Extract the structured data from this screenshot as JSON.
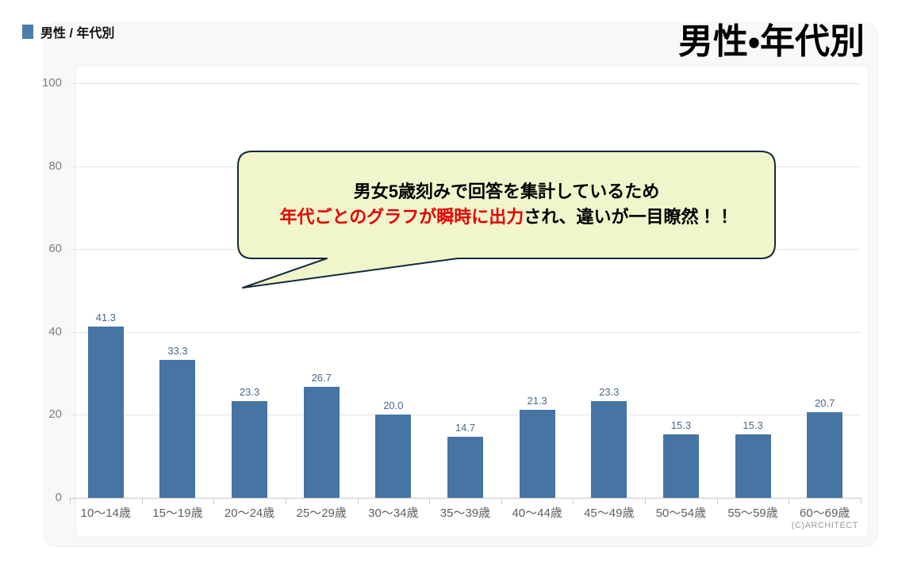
{
  "header": {
    "label": "男性 / 年代別"
  },
  "title": "男性・年代別",
  "callout": {
    "line1": "男女5歳刻みで回答を集計しているため",
    "line2_highlight": "年代ごとのグラフが瞬時に出力",
    "line2_rest": "され、違いが一目瞭然！！"
  },
  "footer": {
    "copyright": "(C)ARCHITECT"
  },
  "colors": {
    "bar": "#4674a3",
    "value_label": "#4a6889",
    "header_square": "#4c7cab",
    "callout_fill": "#f1f5cb",
    "callout_border": "#13293a",
    "callout_highlight_text": "#e60000",
    "gridline": "#e6e6e6",
    "axis_line": "#c9c9c9"
  },
  "chart_data": {
    "type": "bar",
    "title": "男性・年代別",
    "categories": [
      "10〜14歳",
      "15〜19歳",
      "20〜24歳",
      "25〜29歳",
      "30〜34歳",
      "35〜39歳",
      "40〜44歳",
      "45〜49歳",
      "50〜54歳",
      "55〜59歳",
      "60〜69歳"
    ],
    "values": [
      41.3,
      33.3,
      23.3,
      26.7,
      20.0,
      14.7,
      21.3,
      23.3,
      15.3,
      15.3,
      20.7
    ],
    "xlabel": "",
    "ylabel": "",
    "ylim": [
      0,
      100
    ],
    "yticks": [
      0,
      20,
      40,
      60,
      80,
      100
    ],
    "grid": true,
    "legend": false,
    "value_label_decimals": 1
  }
}
